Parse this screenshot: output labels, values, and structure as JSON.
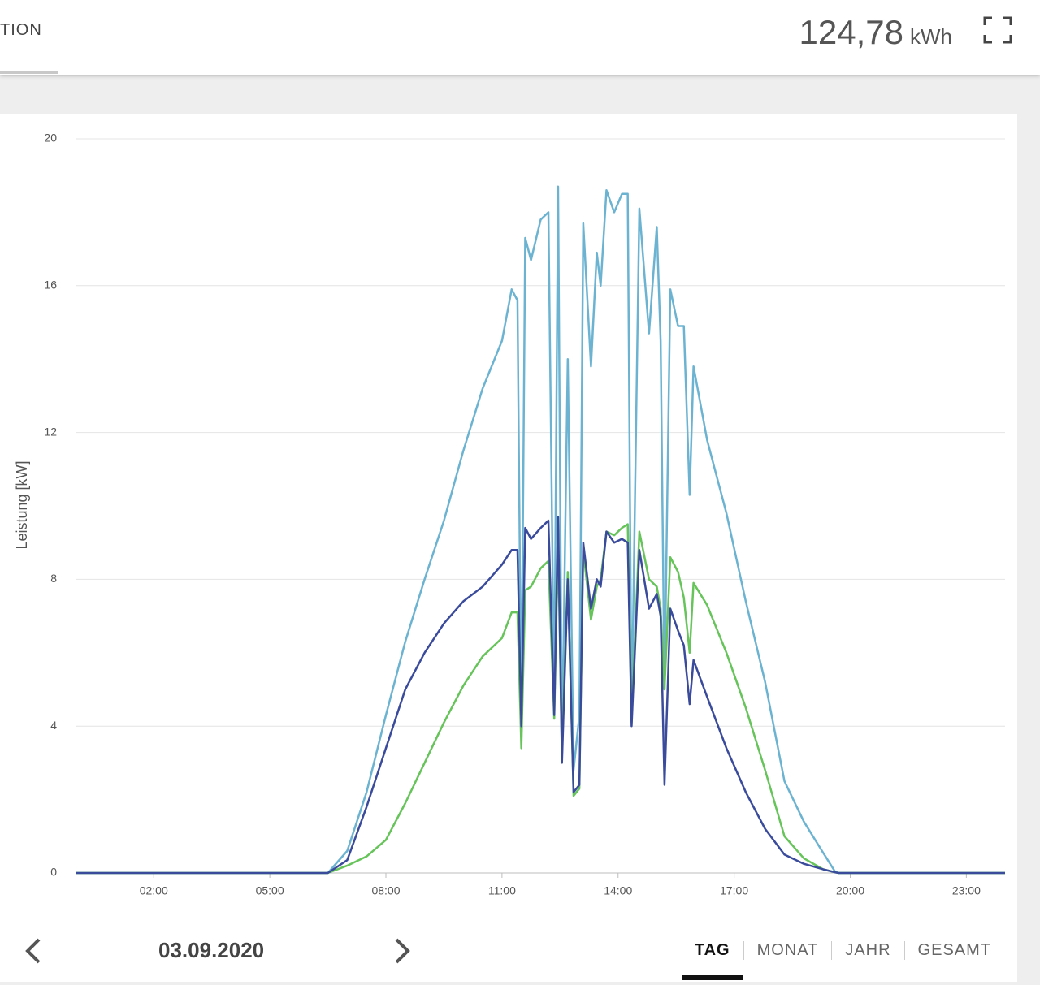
{
  "header": {
    "tab": "TION",
    "total": "124,78",
    "unit": "kWh"
  },
  "footer": {
    "date": "03.09.2020",
    "periods": [
      "TAG",
      "MONAT",
      "JAHR",
      "GESAMT"
    ]
  },
  "chart_data": {
    "type": "line",
    "ylabel": "Leistung [kW]",
    "xlim": [
      0,
      24
    ],
    "xticks": [
      {
        "value": 2,
        "label": "02:00"
      },
      {
        "value": 5,
        "label": "05:00"
      },
      {
        "value": 8,
        "label": "08:00"
      },
      {
        "value": 11,
        "label": "11:00"
      },
      {
        "value": 14,
        "label": "14:00"
      },
      {
        "value": 17,
        "label": "17:00"
      },
      {
        "value": 20,
        "label": "20:00"
      },
      {
        "value": 23,
        "label": "23:00"
      }
    ],
    "ylim": [
      0,
      20
    ],
    "yticks": [
      0,
      4,
      8,
      12,
      16,
      20
    ],
    "grid": true,
    "x": [
      0,
      6.5,
      7.0,
      7.5,
      8.0,
      8.5,
      9.0,
      9.5,
      10.0,
      10.5,
      11.0,
      11.25,
      11.4,
      11.5,
      11.6,
      11.75,
      12.0,
      12.2,
      12.35,
      12.45,
      12.55,
      12.7,
      12.85,
      13.0,
      13.1,
      13.3,
      13.45,
      13.55,
      13.7,
      13.9,
      14.1,
      14.25,
      14.35,
      14.55,
      14.8,
      15.0,
      15.1,
      15.2,
      15.35,
      15.55,
      15.7,
      15.85,
      15.95,
      16.3,
      16.8,
      17.3,
      17.8,
      18.3,
      18.8,
      19.3,
      19.6,
      19.7,
      24
    ],
    "series": [
      {
        "color": "#6cb3d1",
        "values": [
          0,
          0,
          0.6,
          2.2,
          4.3,
          6.3,
          8.0,
          9.6,
          11.5,
          13.2,
          14.5,
          15.9,
          15.6,
          4.1,
          17.3,
          16.7,
          17.8,
          18.0,
          4.5,
          18.7,
          3.2,
          14.0,
          2.8,
          4.3,
          17.7,
          13.8,
          16.9,
          16.0,
          18.6,
          18.0,
          18.5,
          18.5,
          4.1,
          18.1,
          14.7,
          17.6,
          14.5,
          5.0,
          15.9,
          14.9,
          14.9,
          10.3,
          13.8,
          11.8,
          9.8,
          7.4,
          5.2,
          2.5,
          1.4,
          0.55,
          0.05,
          0,
          0
        ]
      },
      {
        "color": "#66c45a",
        "values": [
          0,
          0,
          0.2,
          0.45,
          0.9,
          1.9,
          3.0,
          4.1,
          5.1,
          5.9,
          6.4,
          7.1,
          7.1,
          3.4,
          7.7,
          7.8,
          8.3,
          8.5,
          4.2,
          9.0,
          3.2,
          8.2,
          2.1,
          2.3,
          8.8,
          6.9,
          7.8,
          8.0,
          9.3,
          9.2,
          9.4,
          9.5,
          4.2,
          9.3,
          8.0,
          7.8,
          7.2,
          5.0,
          8.6,
          8.2,
          7.5,
          6.0,
          7.9,
          7.3,
          6.0,
          4.5,
          2.8,
          1.0,
          0.4,
          0.1,
          0.02,
          0,
          0
        ]
      },
      {
        "color": "#3a4b9c",
        "values": [
          0,
          0,
          0.35,
          1.8,
          3.4,
          5.0,
          6.0,
          6.8,
          7.4,
          7.8,
          8.4,
          8.8,
          8.8,
          4.0,
          9.4,
          9.1,
          9.4,
          9.6,
          4.3,
          9.7,
          3.0,
          8.0,
          2.2,
          2.4,
          9.0,
          7.2,
          8.0,
          7.8,
          9.3,
          9.0,
          9.1,
          9.0,
          4.0,
          8.8,
          7.2,
          7.6,
          7.0,
          2.4,
          7.2,
          6.6,
          6.2,
          4.6,
          5.8,
          4.8,
          3.4,
          2.2,
          1.2,
          0.5,
          0.25,
          0.1,
          0.02,
          0,
          0
        ]
      }
    ]
  }
}
